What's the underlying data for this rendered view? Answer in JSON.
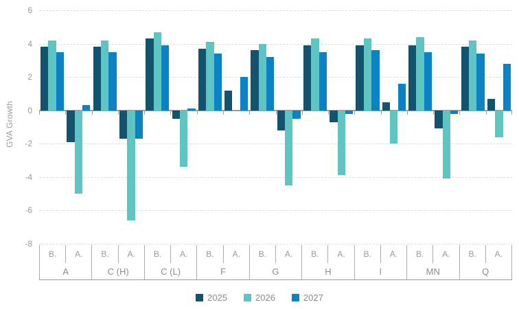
{
  "chart_data": {
    "type": "bar",
    "title": "",
    "ylabel": "GVA Growth",
    "xlabel": "",
    "ylim": [
      -8,
      6
    ],
    "yticks": [
      6,
      4,
      2,
      0,
      -2,
      -4,
      -6,
      -8
    ],
    "grid": "horizontal dashed gridlines at even values, solid zero baseline",
    "legend_position": "bottom",
    "series_names": [
      "2025",
      "2026",
      "2027"
    ],
    "series_colors": [
      "#12536e",
      "#5fc5c3",
      "#0a82c6"
    ],
    "subcategories": [
      "B.",
      "A."
    ],
    "categories": [
      "A",
      "C (H)",
      "C (L)",
      "F",
      "G",
      "H",
      "I",
      "MN",
      "Q"
    ],
    "groups": [
      {
        "label": "A",
        "sub": [
          {
            "label": "B.",
            "values": [
              3.8,
              4.2,
              3.5
            ]
          },
          {
            "label": "A.",
            "values": [
              -1.9,
              -5.0,
              0.3
            ]
          }
        ]
      },
      {
        "label": "C (H)",
        "sub": [
          {
            "label": "B.",
            "values": [
              3.8,
              4.2,
              3.5
            ]
          },
          {
            "label": "A.",
            "values": [
              -1.7,
              -6.6,
              -1.7
            ]
          }
        ]
      },
      {
        "label": "C (L)",
        "sub": [
          {
            "label": "B.",
            "values": [
              4.3,
              4.7,
              3.9
            ]
          },
          {
            "label": "A.",
            "values": [
              -0.5,
              -3.4,
              0.1
            ]
          }
        ]
      },
      {
        "label": "F",
        "sub": [
          {
            "label": "B.",
            "values": [
              3.7,
              4.1,
              3.4
            ]
          },
          {
            "label": "A.",
            "values": [
              1.2,
              0.0,
              2.0
            ]
          }
        ]
      },
      {
        "label": "G",
        "sub": [
          {
            "label": "B.",
            "values": [
              3.6,
              4.0,
              3.2
            ]
          },
          {
            "label": "A.",
            "values": [
              -1.2,
              -4.5,
              -0.5
            ]
          }
        ]
      },
      {
        "label": "H",
        "sub": [
          {
            "label": "B.",
            "values": [
              3.9,
              4.3,
              3.5
            ]
          },
          {
            "label": "A.",
            "values": [
              -0.7,
              -3.9,
              -0.2
            ]
          }
        ]
      },
      {
        "label": "I",
        "sub": [
          {
            "label": "B.",
            "values": [
              3.9,
              4.3,
              3.6
            ]
          },
          {
            "label": "A.",
            "values": [
              0.5,
              -2.0,
              1.6
            ]
          }
        ]
      },
      {
        "label": "MN",
        "sub": [
          {
            "label": "B.",
            "values": [
              3.9,
              4.4,
              3.5
            ]
          },
          {
            "label": "A.",
            "values": [
              -1.1,
              -4.1,
              -0.2
            ]
          }
        ]
      },
      {
        "label": "Q",
        "sub": [
          {
            "label": "B.",
            "values": [
              3.8,
              4.2,
              3.4
            ]
          },
          {
            "label": "A.",
            "values": [
              0.7,
              -1.6,
              2.8
            ]
          }
        ]
      }
    ],
    "axis_colors": {
      "tick_text": "#9a9a9a",
      "gridline": "#dcdcdc",
      "baseline": "#9b9b9b",
      "separator": "#ababab"
    }
  },
  "legend": {
    "items": [
      {
        "label": "2025",
        "color": "#12536e"
      },
      {
        "label": "2026",
        "color": "#5fc5c3"
      },
      {
        "label": "2027",
        "color": "#0a82c6"
      }
    ]
  }
}
